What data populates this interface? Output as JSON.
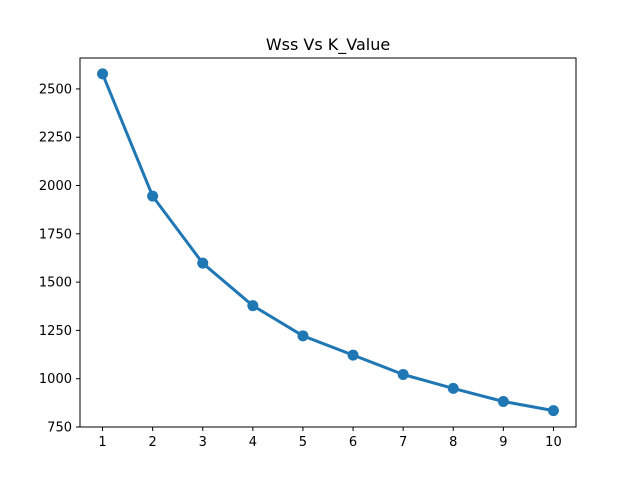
{
  "chart_data": {
    "type": "line",
    "title": "Wss Vs K_Value",
    "xlabel": "",
    "ylabel": "",
    "x": [
      1,
      2,
      3,
      4,
      5,
      6,
      7,
      8,
      9,
      10
    ],
    "series": [
      {
        "values": [
          2578,
          1945,
          1598,
          1378,
          1222,
          1122,
          1022,
          950,
          882,
          835
        ]
      }
    ],
    "xlim": [
      0.55,
      10.45
    ],
    "ylim": [
      750,
      2660
    ],
    "xticks": [
      "1",
      "2",
      "3",
      "4",
      "5",
      "6",
      "7",
      "8",
      "9",
      "10"
    ],
    "yticks": [
      "750",
      "1000",
      "1250",
      "1500",
      "1750",
      "2000",
      "2250",
      "2500"
    ],
    "grid": false,
    "line_color": "#1f77b4"
  }
}
